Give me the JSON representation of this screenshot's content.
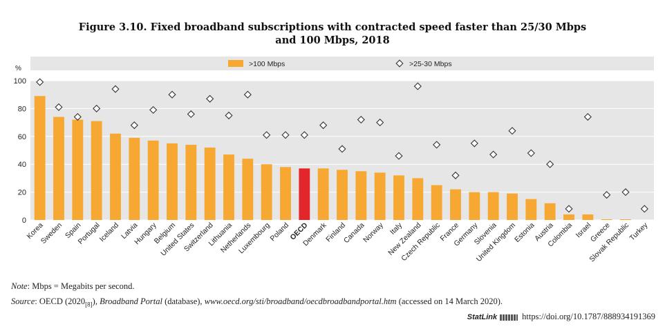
{
  "title": {
    "line1": "Figure 3.10. Fixed broadband subscriptions with contracted speed faster than 25/30 Mbps",
    "line2": "and 100 Mbps, 2018"
  },
  "chart_data": {
    "type": "bar",
    "ylabel": "%",
    "ylim": [
      0,
      100
    ],
    "yticks": [
      0,
      20,
      40,
      60,
      80,
      100
    ],
    "legend_position": "top",
    "categories": [
      "Korea",
      "Sweden",
      "Spain",
      "Portugal",
      "Iceland",
      "Latvia",
      "Hungary",
      "Belgium",
      "United States",
      "Switzerland",
      "Lithuania",
      "Netherlands",
      "Luxembourg",
      "Poland",
      "OECD",
      "Denmark",
      "Finland",
      "Canada",
      "Norway",
      "Italy",
      "New Zealand",
      "Czech Republic",
      "France",
      "Germany",
      "Slovenia",
      "United Kingdom",
      "Estonia",
      "Austria",
      "Colombia",
      "Israel",
      "Greece",
      "Slovak Republic",
      "Turkey"
    ],
    "highlight": "OECD",
    "series": [
      {
        "name": ">100 Mbps",
        "kind": "bar",
        "color": "#f7a833",
        "highlight_color": "#e3262b",
        "values": [
          89,
          74,
          72,
          71,
          62,
          59,
          57,
          55,
          54,
          52,
          47,
          44,
          40,
          38,
          37,
          37,
          36,
          35,
          34,
          32,
          30,
          25,
          22,
          20,
          20,
          19,
          15,
          12,
          4,
          4,
          0.5,
          0.5,
          0
        ]
      },
      {
        "name": ">25-30 Mbps",
        "kind": "marker",
        "marker": "diamond",
        "values": [
          99,
          81,
          74,
          80,
          94,
          68,
          79,
          90,
          76,
          87,
          75,
          90,
          61,
          61,
          61,
          68,
          51,
          72,
          70,
          46,
          96,
          54,
          32,
          55,
          47,
          64,
          48,
          40,
          8,
          74,
          18,
          20,
          8
        ]
      }
    ]
  },
  "notes": {
    "note_label": "Note",
    "note_text": ": Mbps = Megabits per second.",
    "source_label": "Source",
    "source_pre": ": OECD (2020",
    "source_ref": "[8]",
    "source_mid": "), ",
    "source_title": "Broadband Portal",
    "source_after_title": " (database), ",
    "source_url": "www.oecd.org/sti/broadband/oecdbroadbandportal.htm",
    "source_post": " (accessed on 14 March 2020)."
  },
  "statlink": {
    "brand": "StatLink",
    "url": "https://doi.org/10.1787/888934191369"
  }
}
